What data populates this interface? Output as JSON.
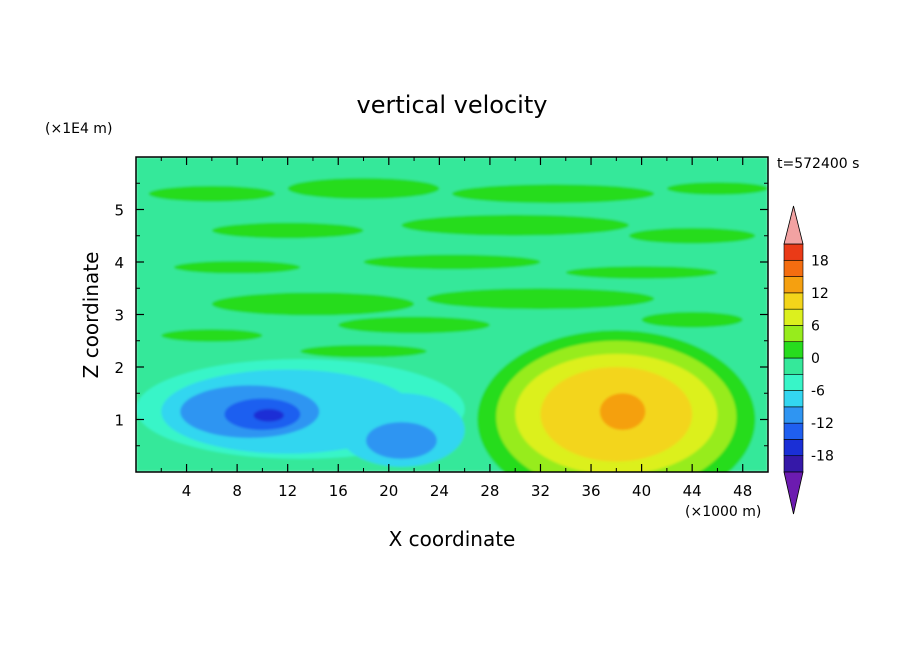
{
  "chart_data": {
    "type": "heatmap",
    "title": "vertical velocity",
    "xlabel": "X coordinate",
    "ylabel": "Z coordinate",
    "x_unit": "(×1000 m)",
    "y_unit": "(×1E4 m)",
    "time_label": "t=572400 s",
    "xlim": [
      0,
      50
    ],
    "ylim": [
      0,
      6
    ],
    "x_ticks": [
      4,
      8,
      12,
      16,
      20,
      24,
      28,
      32,
      36,
      40,
      44,
      48
    ],
    "y_ticks": [
      1,
      2,
      3,
      4,
      5
    ],
    "colorbar": {
      "levels": [
        -21,
        -18,
        -15,
        -12,
        -9,
        -6,
        -3,
        0,
        3,
        6,
        9,
        12,
        15,
        18,
        21
      ],
      "colors": [
        "#6c1bb0",
        "#3518a8",
        "#1a2fd6",
        "#1f5ff0",
        "#2f95f2",
        "#33d6f0",
        "#38f5c8",
        "#35e89a",
        "#27dc1e",
        "#97ec1c",
        "#dcf01e",
        "#f3d51a",
        "#f5a010",
        "#f46d10",
        "#ea3a17",
        "#d9201a",
        "#f2a2a2"
      ],
      "tick_labels": [
        "18",
        "12",
        "6",
        "0",
        "-6",
        "-12",
        "-18"
      ],
      "tick_values": [
        18,
        12,
        6,
        0,
        -6,
        -12,
        -18
      ]
    },
    "features": [
      {
        "x": 10.5,
        "z": 1.1,
        "value": -16
      },
      {
        "x": 21,
        "z": 0.55,
        "value": -12
      },
      {
        "x": 38.5,
        "z": 1.15,
        "value": 11
      },
      {
        "x": 14,
        "z": 3.2,
        "value": 2
      },
      {
        "x": 30,
        "z": 5.4,
        "value": 1
      }
    ]
  }
}
